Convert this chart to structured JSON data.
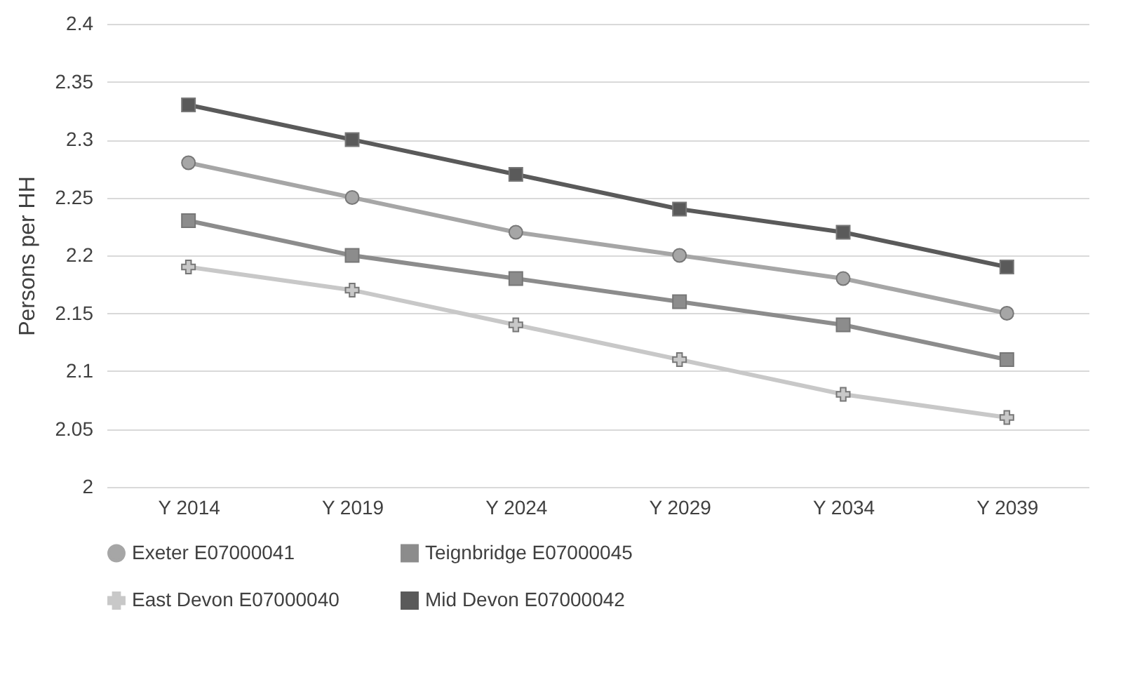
{
  "chart_data": {
    "type": "line",
    "ylabel": "Persons per HH",
    "categories": [
      "Y 2014",
      "Y 2019",
      "Y 2024",
      "Y 2029",
      "Y 2034",
      "Y 2039"
    ],
    "series": [
      {
        "name": "Exeter E07000041",
        "color": "#a6a6a6",
        "marker": "circle",
        "values": [
          2.28,
          2.25,
          2.22,
          2.2,
          2.18,
          2.15
        ]
      },
      {
        "name": "Teignbridge E07000045",
        "color": "#8c8c8c",
        "marker": "square",
        "values": [
          2.23,
          2.2,
          2.18,
          2.16,
          2.14,
          2.11
        ]
      },
      {
        "name": "East Devon E07000040",
        "color": "#c8c8c8",
        "marker": "cross",
        "values": [
          2.19,
          2.17,
          2.14,
          2.11,
          2.08,
          2.06
        ]
      },
      {
        "name": "Mid Devon E07000042",
        "color": "#5a5a5a",
        "marker": "square",
        "values": [
          2.33,
          2.3,
          2.27,
          2.24,
          2.22,
          2.19
        ]
      }
    ],
    "ylim": [
      2,
      2.4
    ],
    "yticks": [
      2,
      2.05,
      2.1,
      2.15,
      2.2,
      2.25,
      2.3,
      2.35,
      2.4
    ],
    "grid": "y",
    "legend": "bottom",
    "line_style": "solid"
  }
}
